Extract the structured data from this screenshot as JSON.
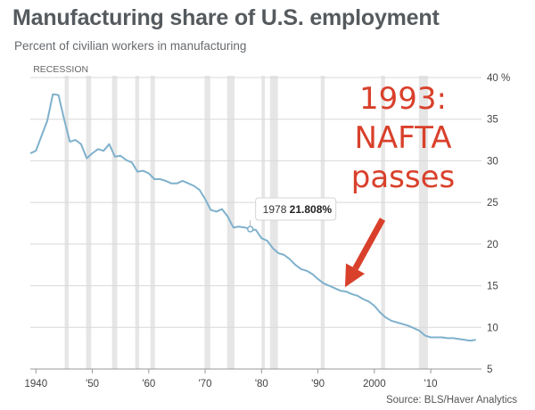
{
  "chart_data": {
    "type": "line",
    "title": "Manufacturing share of U.S. employment",
    "subtitle": "Percent of civilian workers in manufacturing",
    "recession_label": "RECESSION",
    "source": "Source: BLS/Haver Analytics",
    "y_unit": "%",
    "ylim": [
      5,
      40
    ],
    "y_ticks": [
      5,
      10,
      15,
      20,
      25,
      30,
      35,
      40
    ],
    "xlim": [
      1939,
      2019
    ],
    "x_ticks": [
      {
        "year": 1940,
        "label": "1940"
      },
      {
        "year": 1950,
        "label": "'50"
      },
      {
        "year": 1960,
        "label": "'60"
      },
      {
        "year": 1970,
        "label": "'70"
      },
      {
        "year": 1980,
        "label": "'80"
      },
      {
        "year": 1990,
        "label": "'90"
      },
      {
        "year": 2000,
        "label": "2000"
      },
      {
        "year": 2010,
        "label": "'10"
      }
    ],
    "series": [
      {
        "x": [
          1939,
          1940,
          1941,
          1942,
          1943,
          1944,
          1945,
          1946,
          1947,
          1948,
          1949,
          1950,
          1951,
          1952,
          1953,
          1954,
          1955,
          1956,
          1957,
          1958,
          1959,
          1960,
          1961,
          1962,
          1963,
          1964,
          1965,
          1966,
          1967,
          1968,
          1969,
          1970,
          1971,
          1972,
          1973,
          1974,
          1975,
          1976,
          1977,
          1978,
          1979,
          1980,
          1981,
          1982,
          1983,
          1984,
          1985,
          1986,
          1987,
          1988,
          1989,
          1990,
          1991,
          1992,
          1993,
          1994,
          1995,
          1996,
          1997,
          1998,
          1999,
          2000,
          2001,
          2002,
          2003,
          2004,
          2005,
          2006,
          2007,
          2008,
          2009,
          2010,
          2011,
          2012,
          2013,
          2014,
          2015,
          2016,
          2017,
          2018
        ],
        "values": [
          30.9,
          31.2,
          33.0,
          34.8,
          38.0,
          37.9,
          35.0,
          32.3,
          32.5,
          32.0,
          30.3,
          30.9,
          31.4,
          31.2,
          32.0,
          30.5,
          30.6,
          30.1,
          29.8,
          28.7,
          28.8,
          28.5,
          27.8,
          27.8,
          27.6,
          27.3,
          27.3,
          27.6,
          27.3,
          27.0,
          26.5,
          25.4,
          24.1,
          23.9,
          24.2,
          23.3,
          22.0,
          22.1,
          22.0,
          21.8,
          21.7,
          20.7,
          20.4,
          19.5,
          18.9,
          18.7,
          18.2,
          17.5,
          17.0,
          16.8,
          16.4,
          15.8,
          15.3,
          15.0,
          14.7,
          14.4,
          14.3,
          14.0,
          13.8,
          13.4,
          13.1,
          12.6,
          11.8,
          11.2,
          10.8,
          10.6,
          10.4,
          10.2,
          9.9,
          9.6,
          9.0,
          8.8,
          8.8,
          8.8,
          8.7,
          8.7,
          8.6,
          8.5,
          8.4,
          8.5
        ]
      }
    ],
    "recessions": [
      [
        1945.1,
        1945.8
      ],
      [
        1948.9,
        1949.8
      ],
      [
        1953.5,
        1954.4
      ],
      [
        1957.6,
        1958.3
      ],
      [
        1960.3,
        1961.1
      ],
      [
        1969.9,
        1970.9
      ],
      [
        1973.9,
        1975.2
      ],
      [
        1980.0,
        1980.6
      ],
      [
        1981.5,
        1982.9
      ],
      [
        1990.5,
        1991.2
      ],
      [
        2001.2,
        2001.9
      ],
      [
        2007.9,
        2009.5
      ]
    ],
    "tooltip": {
      "year": 1978,
      "label_year": "1978",
      "label_value": "21.808%"
    },
    "annotation": {
      "lines": [
        "1993:",
        "NAFTA",
        "passes"
      ],
      "arrow_target_year": 1994.8,
      "arrow_target_value": 14.6
    },
    "colors": {
      "line": "#7fb1cc",
      "recession": "#e6e6e6",
      "annotation": "#d9402b",
      "grid": "#d8d8d8"
    }
  }
}
